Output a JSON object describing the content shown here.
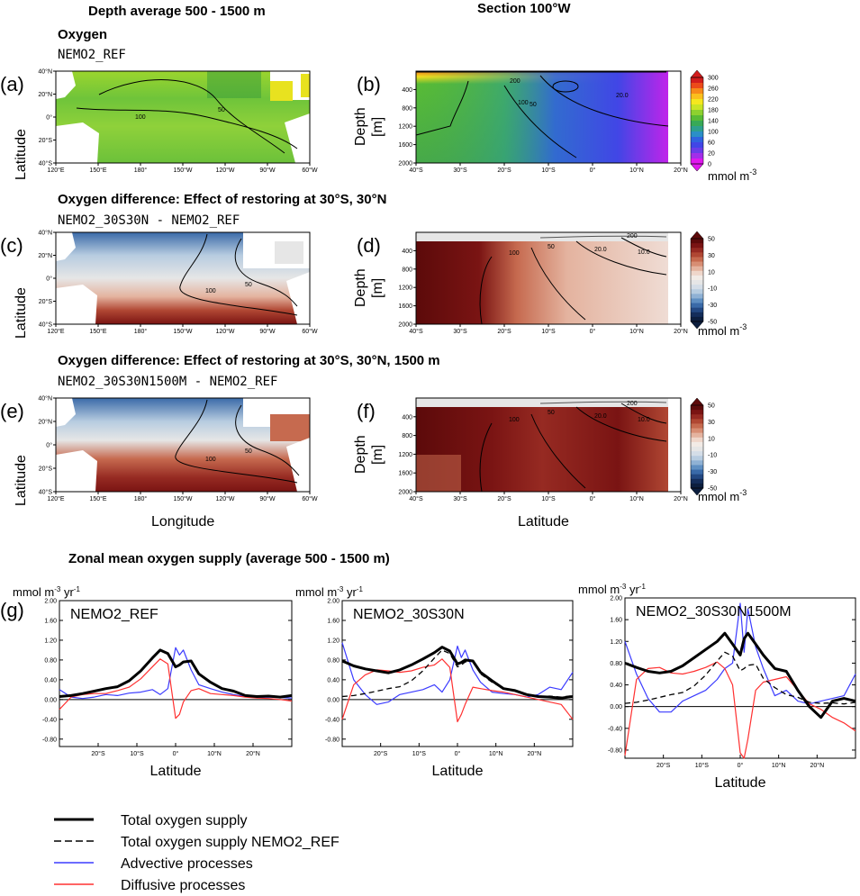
{
  "headers": {
    "col_left": "Depth average 500 - 1500 m",
    "col_right": "Section 100°W",
    "row1_title": "Oxygen",
    "row1_sub": "NEMO2_REF",
    "row2_title": "Oxygen difference: Effect of restoring at 30°S, 30°N",
    "row2_sub": "NEMO2_30S30N - NEMO2_REF",
    "row3_title": "Oxygen difference: Effect of restoring at 30°S, 30°N, 1500 m",
    "row3_sub": "NEMO2_30S30N1500M - NEMO2_REF",
    "zonal_title": "Zonal mean oxygen supply (average 500 - 1500 m)"
  },
  "panel_labels": [
    "(a)",
    "(b)",
    "(c)",
    "(d)",
    "(e)",
    "(f)",
    "(g)"
  ],
  "map_axes": {
    "ylabel": "Latitude",
    "xlabel": "Longitude",
    "x_ticks": [
      "120°E",
      "150°E",
      "180°",
      "150°W",
      "120°W",
      "90°W",
      "60°W"
    ],
    "y_ticks": [
      "40°N",
      "20°N",
      "0°",
      "20°S",
      "40°S"
    ]
  },
  "section_axes": {
    "ylabel_1": "Depth",
    "ylabel_2": "[m]",
    "xlabel": "Latitude",
    "x_ticks": [
      "40°S",
      "30°S",
      "20°S",
      "10°S",
      "0°",
      "10°N",
      "20°N"
    ],
    "y_ticks": [
      "400",
      "800",
      "1200",
      "1600",
      "2000"
    ]
  },
  "colorbars": {
    "oxygen": {
      "ticks": [
        "300",
        "260",
        "220",
        "180",
        "140",
        "100",
        "60",
        "20",
        "0"
      ],
      "unit": "mmol m",
      "exp": "-3",
      "colors": [
        "#d21d1d",
        "#ec4a1a",
        "#f78a1a",
        "#fbbf1d",
        "#f5e71e",
        "#c9e425",
        "#8dd12f",
        "#58bb36",
        "#38a957",
        "#2e9f8e",
        "#2b8fc7",
        "#2f63df",
        "#4146e6",
        "#6a3ce8",
        "#a22ee9",
        "#e017ee"
      ]
    },
    "diff": {
      "ticks": [
        "50",
        "30",
        "10",
        "-10",
        "-30",
        "-50"
      ],
      "unit": "mmol m",
      "exp": "-3",
      "colors": [
        "#5c0a0a",
        "#7a1413",
        "#962a22",
        "#b04733",
        "#c66a4f",
        "#d78e74",
        "#e4b39f",
        "#efd6ca",
        "#f2ebe6",
        "#e6e6e6",
        "#d4dde7",
        "#b7cce0",
        "#8fb1d4",
        "#5f8fc2",
        "#3a6aa8",
        "#234882",
        "#142d5a",
        "#0c1e3e"
      ]
    }
  },
  "contours": {
    "a": [
      "100",
      "50"
    ],
    "b": [
      "200",
      "100",
      "50",
      "20.0"
    ],
    "c": [
      "100",
      "50"
    ],
    "d": [
      "100",
      "50",
      "20.0",
      "10.0",
      "200"
    ],
    "e": [
      "100",
      "50"
    ],
    "f": [
      "100",
      "50",
      "20.0",
      "10.0",
      "200"
    ]
  },
  "chart_data": [
    {
      "type": "line",
      "panel": "g1",
      "inset_label": "NEMO2_REF",
      "ylabel": "mmol m-3 yr-1",
      "xlabel": "Latitude",
      "x_ticks": [
        "20°S",
        "10°S",
        "0°",
        "10°N",
        "20°N"
      ],
      "y_ticks": [
        "2.00",
        "1.60",
        "1.20",
        "0.80",
        "0.40",
        "0.00",
        "-0.40",
        "-0.80"
      ],
      "xlim": [
        -30,
        30
      ],
      "ylim": [
        -0.95,
        2.0
      ],
      "x": [
        -30,
        -27,
        -24,
        -21,
        -18,
        -15,
        -12,
        -9,
        -6,
        -4,
        -2,
        0,
        1,
        2,
        4,
        6,
        9,
        12,
        15,
        18,
        21,
        24,
        27,
        30
      ],
      "series": [
        {
          "name": "Total oxygen supply",
          "values": [
            0.06,
            0.08,
            0.12,
            0.17,
            0.22,
            0.26,
            0.38,
            0.58,
            0.84,
            1.0,
            0.93,
            0.66,
            0.7,
            0.76,
            0.78,
            0.52,
            0.35,
            0.22,
            0.17,
            0.08,
            0.06,
            0.07,
            0.05,
            0.08
          ]
        },
        {
          "name": "Advective processes",
          "values": [
            0.2,
            0.05,
            0.02,
            0.05,
            0.1,
            0.08,
            0.13,
            0.15,
            0.2,
            0.1,
            0.22,
            1.05,
            0.9,
            1.0,
            0.6,
            0.3,
            0.22,
            0.15,
            0.1,
            0.06,
            0.04,
            0.05,
            0.04,
            0.03
          ]
        },
        {
          "name": "Diffusive processes",
          "values": [
            -0.2,
            0.05,
            0.1,
            0.12,
            0.12,
            0.18,
            0.25,
            0.42,
            0.66,
            0.82,
            0.72,
            -0.38,
            -0.3,
            -0.05,
            0.18,
            0.22,
            0.12,
            0.1,
            0.08,
            0.05,
            0.03,
            0.02,
            0.0,
            -0.03
          ]
        }
      ]
    },
    {
      "type": "line",
      "panel": "g2",
      "inset_label": "NEMO2_30S30N",
      "ylabel": "mmol m-3 yr-1",
      "xlabel": "Latitude",
      "x_ticks": [
        "20°S",
        "10°S",
        "0°",
        "10°N",
        "20°N"
      ],
      "y_ticks": [
        "2.00",
        "1.60",
        "1.20",
        "0.80",
        "0.40",
        "0.00",
        "-0.40",
        "-0.80"
      ],
      "xlim": [
        -30,
        30
      ],
      "ylim": [
        -0.95,
        2.0
      ],
      "x": [
        -30,
        -27,
        -24,
        -21,
        -18,
        -15,
        -12,
        -9,
        -6,
        -4,
        -2,
        0,
        1,
        2,
        4,
        6,
        9,
        12,
        15,
        18,
        21,
        24,
        27,
        30
      ],
      "series": [
        {
          "name": "Total oxygen supply",
          "values": [
            0.78,
            0.68,
            0.62,
            0.58,
            0.54,
            0.6,
            0.7,
            0.82,
            0.95,
            1.06,
            0.98,
            0.72,
            0.75,
            0.8,
            0.78,
            0.55,
            0.38,
            0.22,
            0.18,
            0.1,
            0.06,
            0.05,
            0.03,
            0.06
          ]
        },
        {
          "name": "Total oxygen supply NEMO2_REF",
          "values": [
            0.06,
            0.08,
            0.12,
            0.17,
            0.22,
            0.26,
            0.38,
            0.58,
            0.84,
            1.0,
            0.93,
            0.66,
            0.7,
            0.76,
            0.78,
            0.52,
            0.35,
            0.22,
            0.17,
            0.08,
            0.06,
            0.07,
            0.05,
            0.08
          ]
        },
        {
          "name": "Advective processes",
          "values": [
            1.15,
            0.4,
            0.1,
            -0.1,
            -0.05,
            0.1,
            0.15,
            0.2,
            0.3,
            0.15,
            0.4,
            1.08,
            0.85,
            1.0,
            0.6,
            0.35,
            0.15,
            0.12,
            0.1,
            0.05,
            0.1,
            0.25,
            0.2,
            0.55
          ]
        },
        {
          "name": "Diffusive processes",
          "values": [
            -0.4,
            0.3,
            0.5,
            0.6,
            0.58,
            0.55,
            0.58,
            0.65,
            0.7,
            0.82,
            0.65,
            -0.45,
            -0.3,
            -0.1,
            0.25,
            0.22,
            0.18,
            0.15,
            0.1,
            0.05,
            0.0,
            -0.05,
            -0.1,
            -0.4
          ]
        }
      ]
    },
    {
      "type": "line",
      "panel": "g3",
      "inset_label": "NEMO2_30S30N1500M",
      "ylabel": "mmol m-3 yr-1",
      "xlabel": "Latitude",
      "x_ticks": [
        "20°S",
        "10°S",
        "0°",
        "10°N",
        "20°N"
      ],
      "y_ticks": [
        "2.00",
        "1.60",
        "1.20",
        "0.80",
        "0.40",
        "0.00",
        "-0.40",
        "-0.80"
      ],
      "xlim": [
        -30,
        30
      ],
      "ylim": [
        -0.95,
        2.0
      ],
      "x": [
        -30,
        -27,
        -24,
        -21,
        -18,
        -15,
        -12,
        -9,
        -6,
        -4,
        -2,
        0,
        1,
        2,
        4,
        6,
        9,
        12,
        15,
        18,
        21,
        24,
        27,
        30
      ],
      "series": [
        {
          "name": "Total oxygen supply",
          "values": [
            0.8,
            0.72,
            0.65,
            0.62,
            0.65,
            0.75,
            0.9,
            1.05,
            1.2,
            1.35,
            1.15,
            0.95,
            1.25,
            1.35,
            1.15,
            0.95,
            0.7,
            0.65,
            0.3,
            0.0,
            -0.2,
            0.1,
            0.15,
            0.1
          ]
        },
        {
          "name": "Total oxygen supply NEMO2_REF",
          "values": [
            0.06,
            0.08,
            0.12,
            0.17,
            0.22,
            0.26,
            0.38,
            0.58,
            0.84,
            1.0,
            0.93,
            0.66,
            0.7,
            0.76,
            0.78,
            0.52,
            0.35,
            0.22,
            0.17,
            0.08,
            0.06,
            0.07,
            0.05,
            0.08
          ]
        },
        {
          "name": "Advective processes",
          "values": [
            1.2,
            0.6,
            0.15,
            -0.1,
            -0.1,
            0.1,
            0.2,
            0.3,
            0.5,
            0.7,
            0.8,
            1.9,
            1.0,
            1.8,
            1.1,
            0.7,
            0.2,
            0.3,
            0.1,
            0.05,
            0.1,
            0.15,
            0.2,
            0.6
          ]
        },
        {
          "name": "Diffusive processes",
          "values": [
            -0.9,
            0.5,
            0.7,
            0.72,
            0.62,
            0.6,
            0.65,
            0.72,
            0.82,
            0.7,
            0.4,
            -0.85,
            -0.95,
            -0.6,
            0.3,
            0.45,
            0.5,
            0.55,
            0.3,
            0.05,
            -0.05,
            -0.2,
            -0.3,
            -0.45
          ]
        }
      ]
    }
  ],
  "legend": [
    {
      "label": "Total oxygen supply",
      "style": "thick-black"
    },
    {
      "label": "Total oxygen supply NEMO2_REF",
      "style": "dashed-black"
    },
    {
      "label": "Advective processes",
      "style": "blue"
    },
    {
      "label": "Diffusive processes",
      "style": "red"
    }
  ],
  "colors": {
    "total": "#000000",
    "ref": "#000000",
    "advective": "#3b3bff",
    "diffusive": "#ff3030"
  }
}
